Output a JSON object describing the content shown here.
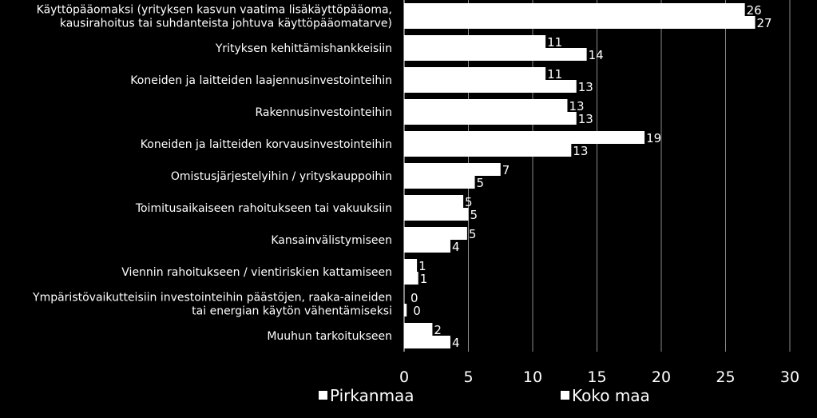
{
  "chart_data": {
    "type": "bar",
    "orientation": "horizontal",
    "categories": [
      [
        "Käyttöpääomaksi (yrityksen kasvun vaatima lisäkäyttöpääoma,",
        "kausirahoitus tai suhdanteista johtuva käyttöpääomatarve)"
      ],
      [
        "Yrityksen kehittämishankkeisiin"
      ],
      [
        "Koneiden ja laitteiden laajennusinvestointeihin"
      ],
      [
        "Rakennusinvestointeihin"
      ],
      [
        "Koneiden ja laitteiden korvausinvestointeihin"
      ],
      [
        "Omistusjärjestelyihin / yrityskauppoihin"
      ],
      [
        "Toimitusaikaiseen rahoitukseen tai vakuuksiin"
      ],
      [
        "Kansainvälistymiseen"
      ],
      [
        "Viennin rahoitukseen / vientiriskien kattamiseen"
      ],
      [
        "Ympäristövaikutteisiin investointeihin päästöjen, raaka-aineiden",
        "tai energian käytön vähentämiseksi"
      ],
      [
        "Muuhun tarkoitukseen"
      ]
    ],
    "series": [
      {
        "name": "Pirkanmaa",
        "values": [
          26,
          11,
          11,
          13,
          19,
          7,
          5,
          5,
          1,
          0,
          2
        ],
        "bar_values": [
          26.5,
          11,
          11,
          12.7,
          18.7,
          7.5,
          4.6,
          4.9,
          1,
          0,
          2.2
        ],
        "color": "#ffffff"
      },
      {
        "name": "Koko maa",
        "values": [
          27,
          14,
          13,
          13,
          13,
          5,
          5,
          4,
          1,
          0,
          4
        ],
        "bar_values": [
          27.3,
          14.2,
          13.4,
          13.4,
          13,
          5.5,
          5,
          3.6,
          1.1,
          0.2,
          3.6
        ],
        "color": "#ffffff"
      }
    ],
    "xlim": [
      0,
      30
    ],
    "xticks": [
      "0",
      "5",
      "10",
      "15",
      "20",
      "25",
      "30"
    ],
    "gridlines": true,
    "legend_position": "bottom",
    "colors": {
      "background": "#000000",
      "bar": "#ffffff",
      "grid": "#8a8a8a",
      "text": "#ffffff"
    }
  }
}
